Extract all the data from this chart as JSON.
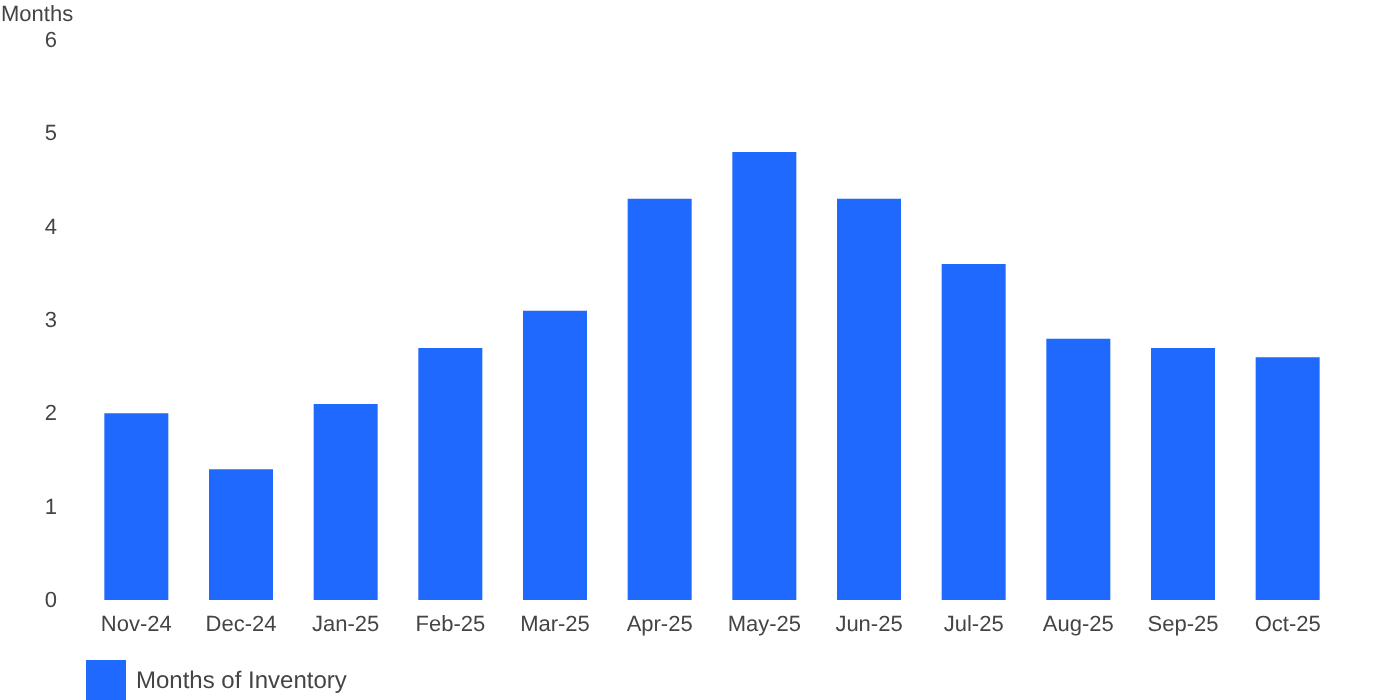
{
  "chart_data": {
    "type": "bar",
    "ylabel": "Months",
    "categories": [
      "Nov-24",
      "Dec-24",
      "Jan-25",
      "Feb-25",
      "Mar-25",
      "Apr-25",
      "May-25",
      "Jun-25",
      "Jul-25",
      "Aug-25",
      "Sep-25",
      "Oct-25"
    ],
    "series": [
      {
        "name": "Months of Inventory",
        "color": "#1f69ff",
        "values": [
          2.0,
          1.4,
          2.1,
          2.7,
          3.1,
          4.3,
          4.8,
          4.3,
          3.6,
          2.8,
          2.7,
          2.6
        ]
      }
    ],
    "ylim": [
      0,
      6
    ],
    "yticks": [
      0,
      1,
      2,
      3,
      4,
      5,
      6
    ],
    "grid": false,
    "legend": "bottom"
  }
}
